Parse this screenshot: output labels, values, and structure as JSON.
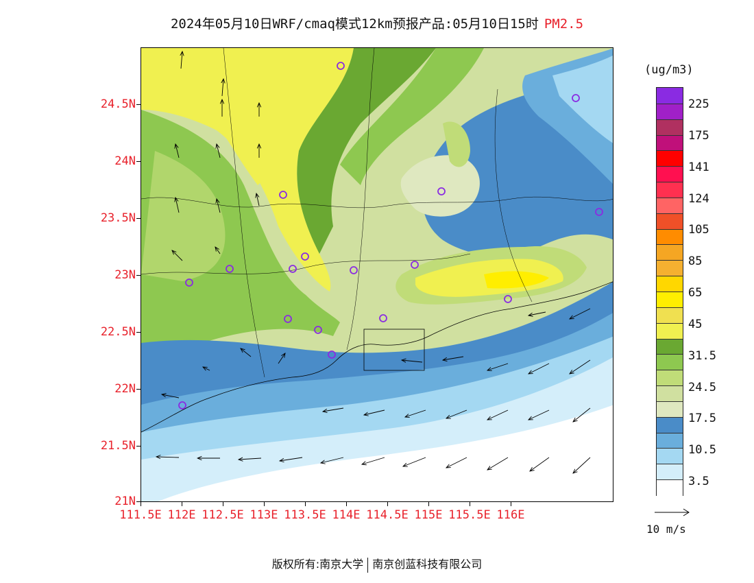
{
  "title": {
    "main": "2024年05月10日WRF/cmaq模式12km预报产品:05月10日15时",
    "species": "PM2.5"
  },
  "axes": {
    "lat_labels": [
      "24.5N",
      "24N",
      "23.5N",
      "23N",
      "22.5N",
      "22N",
      "21.5N",
      "21N"
    ],
    "lon_labels": [
      "111.5E",
      "112E",
      "112.5E",
      "113E",
      "113.5E",
      "114E",
      "114.5E",
      "115E",
      "115.5E",
      "116E"
    ]
  },
  "colorbar": {
    "unit": "(ug/m3)",
    "labels": [
      "225",
      "175",
      "141",
      "124",
      "105",
      "85",
      "65",
      "45",
      "31.5",
      "24.5",
      "17.5",
      "10.5",
      "3.5"
    ],
    "colors_top_to_bottom": [
      "#8a2be2",
      "#a020c8",
      "#b03060",
      "#c0107a",
      "#ff0000",
      "#ff1050",
      "#ff3050",
      "#ff6464",
      "#f05028",
      "#ff8c00",
      "#f5a623",
      "#f5b030",
      "#ffd700",
      "#ffee00",
      "#f0e050",
      "#f0f050",
      "#6aa832",
      "#8ec850",
      "#c0dc78",
      "#d0e0a0",
      "#dfe8c0",
      "#4a8cc8",
      "#6aaedc",
      "#a4d8f2",
      "#d4eefa",
      "#ffffff"
    ]
  },
  "vector_legend": {
    "label": "10 m/s"
  },
  "footer": {
    "left": "版权所有:南京大学",
    "right": "南京创蓝科技有限公司"
  },
  "colors": {
    "label_red": "#e8202a"
  }
}
